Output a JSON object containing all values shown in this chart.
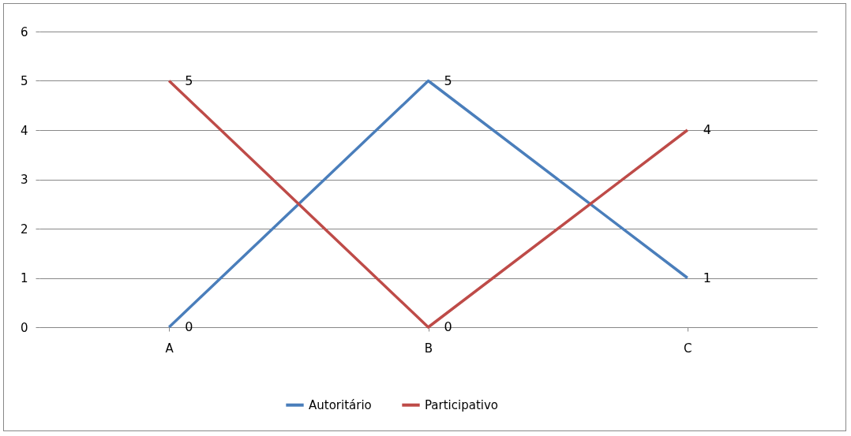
{
  "chart_data": {
    "type": "line",
    "categories": [
      "A",
      "B",
      "C"
    ],
    "series": [
      {
        "name": "Autoritário",
        "color": "#4a7ebb",
        "values": [
          0,
          5,
          1
        ]
      },
      {
        "name": "Participativo",
        "color": "#be4b48",
        "values": [
          5,
          0,
          4
        ]
      }
    ],
    "ylim": [
      0,
      6
    ],
    "yticks": [
      0,
      1,
      2,
      3,
      4,
      5,
      6
    ],
    "grid": "y",
    "legend": "bottom",
    "data_labels": true
  }
}
